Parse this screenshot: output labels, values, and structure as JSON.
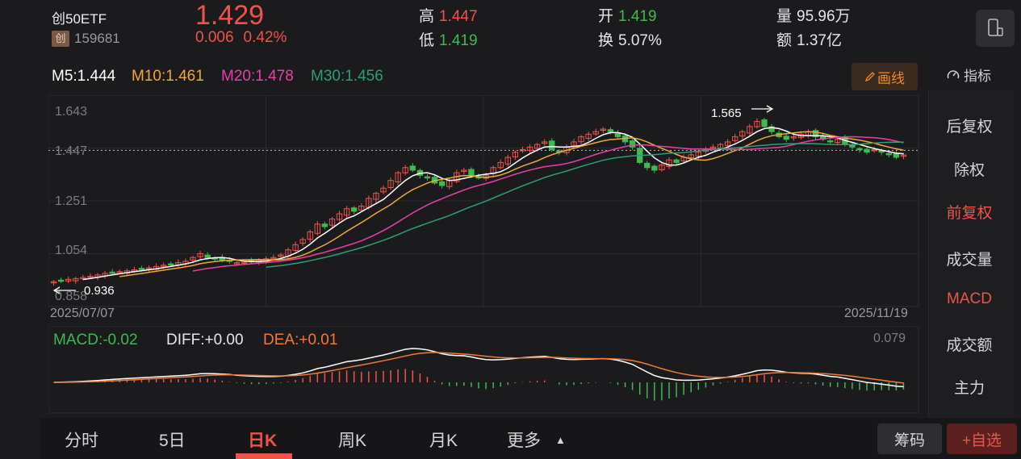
{
  "header": {
    "name": "创50ETF",
    "market_badge": "创",
    "code": "159681",
    "price": "1.429",
    "change": "0.006",
    "change_pct": "0.42%",
    "high_label": "高",
    "high_value": "1.447",
    "low_label": "低",
    "low_value": "1.419",
    "open_label": "开",
    "open_value": "1.419",
    "turnover_label": "换",
    "turnover_value": "5.07%",
    "volume_label": "量",
    "volume_value": "95.96万",
    "amount_label": "额",
    "amount_value": "1.37亿"
  },
  "ma": {
    "m5": "M5:1.444",
    "m10": "M10:1.461",
    "m20": "M20:1.478",
    "m30": "M30:1.456"
  },
  "toolbar": {
    "draw_label": "画线",
    "indicator_label": "指标"
  },
  "side_panel": [
    {
      "label": "后复权",
      "active": false
    },
    {
      "label": "除权",
      "active": false
    },
    {
      "label": "前复权",
      "active": true
    },
    {
      "label": "成交量",
      "active": false
    },
    {
      "label": "MACD",
      "active": true
    },
    {
      "label": "成交额",
      "active": false
    },
    {
      "label": "主力",
      "active": false
    }
  ],
  "chart_labels": {
    "y_ticks": [
      "1.643",
      "1.447",
      "1.251",
      "1.054",
      "0.858"
    ],
    "max_label": "1.565",
    "min_label": "0.936",
    "start_date": "2025/07/07",
    "end_date": "2025/11/19"
  },
  "macd": {
    "macd": "MACD:-0.02",
    "diff": "DIFF:+0.00",
    "dea": "DEA:+0.01",
    "max": "0.079"
  },
  "tabs": [
    "分时",
    "5日",
    "日K",
    "周K",
    "月K",
    "更多"
  ],
  "active_tab": "日K",
  "buttons": {
    "chips": "筹码",
    "add_fav": "+自选"
  },
  "colors": {
    "up": "#f0534a",
    "down": "#3fb950",
    "m5": "#ffffff",
    "m10": "#f0a83a",
    "m20": "#e83fa8",
    "m30": "#2e9e74",
    "dea": "#f07a3a"
  },
  "chart_data": {
    "type": "candlestick",
    "x_range": [
      "2025/07/07",
      "2025/11/19"
    ],
    "ylim": [
      0.858,
      1.643
    ],
    "close": [
      0.936,
      0.94,
      0.945,
      0.948,
      0.952,
      0.957,
      0.962,
      0.968,
      0.972,
      0.975,
      0.978,
      0.982,
      0.986,
      0.99,
      0.995,
      1.0,
      1.005,
      1.01,
      1.015,
      1.03,
      1.045,
      1.03,
      1.025,
      1.02,
      1.015,
      1.01,
      1.012,
      1.015,
      1.02,
      1.025,
      1.03,
      1.04,
      1.06,
      1.08,
      1.1,
      1.13,
      1.16,
      1.15,
      1.18,
      1.2,
      1.22,
      1.21,
      1.23,
      1.26,
      1.28,
      1.3,
      1.33,
      1.36,
      1.38,
      1.37,
      1.35,
      1.34,
      1.32,
      1.31,
      1.33,
      1.36,
      1.37,
      1.35,
      1.34,
      1.35,
      1.38,
      1.4,
      1.42,
      1.44,
      1.45,
      1.46,
      1.47,
      1.48,
      1.45,
      1.44,
      1.46,
      1.48,
      1.5,
      1.51,
      1.52,
      1.53,
      1.52,
      1.5,
      1.48,
      1.46,
      1.4,
      1.38,
      1.37,
      1.39,
      1.41,
      1.4,
      1.42,
      1.43,
      1.44,
      1.45,
      1.46,
      1.47,
      1.48,
      1.5,
      1.52,
      1.54,
      1.56,
      1.54,
      1.52,
      1.5,
      1.49,
      1.5,
      1.51,
      1.52,
      1.5,
      1.49,
      1.48,
      1.49,
      1.47,
      1.46,
      1.45,
      1.44,
      1.45,
      1.44,
      1.43,
      1.42,
      1.429
    ]
  }
}
